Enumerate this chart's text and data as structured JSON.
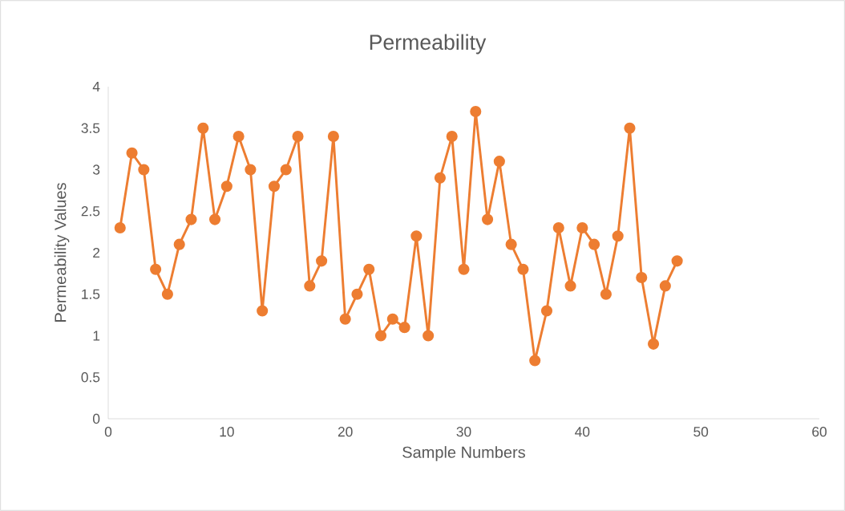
{
  "chart_data": {
    "type": "line",
    "title": "Permeability",
    "xlabel": "Sample Numbers",
    "ylabel": "Permeability Values",
    "x": [
      1,
      2,
      3,
      4,
      5,
      6,
      7,
      8,
      9,
      10,
      11,
      12,
      13,
      14,
      15,
      16,
      17,
      18,
      19,
      20,
      21,
      22,
      23,
      24,
      25,
      26,
      27,
      28,
      29,
      30,
      31,
      32,
      33,
      34,
      35,
      36,
      37,
      38,
      39,
      40,
      41,
      42,
      43,
      44,
      45,
      46,
      47,
      48
    ],
    "values": [
      2.3,
      3.2,
      3.0,
      1.8,
      1.5,
      2.1,
      2.4,
      3.5,
      2.4,
      2.8,
      3.4,
      3.0,
      1.3,
      2.8,
      3.0,
      3.4,
      1.6,
      1.9,
      3.4,
      1.2,
      1.5,
      1.8,
      1.0,
      1.2,
      1.1,
      2.2,
      1.0,
      2.9,
      3.4,
      1.8,
      3.7,
      2.4,
      3.1,
      2.1,
      1.8,
      0.7,
      1.3,
      2.3,
      1.6,
      2.3,
      2.1,
      1.5,
      2.2,
      3.5,
      1.7,
      0.9,
      1.6,
      1.9
    ],
    "color": "#ed7d31",
    "marker": "circle",
    "line_style": "solid",
    "xlim": [
      0,
      60
    ],
    "ylim": [
      0,
      4
    ],
    "xticks": [
      0,
      10,
      20,
      30,
      40,
      50,
      60
    ],
    "yticks": [
      0,
      0.5,
      1,
      1.5,
      2,
      2.5,
      3,
      3.5,
      4
    ]
  }
}
